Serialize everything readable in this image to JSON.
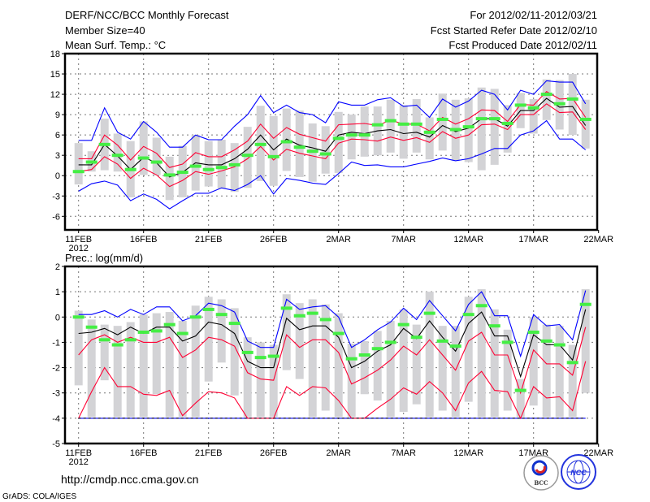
{
  "header": {
    "title": "DERF/NCC/BCC Monthly Forecast",
    "member_size": "Member Size=40",
    "variable": "Mean Surf. Temp.: °C",
    "period": "For 2012/02/11-2012/03/21",
    "start_date": "Fcst Started Refer Date 2012/02/10",
    "produced_date": "Fcst Produced Date 2012/02/11"
  },
  "footer": {
    "url": "http://cmdp.ncc.cma.gov.cn",
    "credit": "GrADS: COLA/IGES",
    "logos": [
      "BCC",
      "NCC"
    ]
  },
  "colors": {
    "max_min": "#0000ff",
    "quartile": "#ff0033",
    "mean": "#000000",
    "observed": "#44ee44",
    "range_box": "#d3d3d6"
  },
  "chart_data": [
    {
      "type": "line",
      "title": "Mean Surf. Temp.: °C",
      "xlabel": "",
      "ylabel": "Mean Surf. Temp.: °C",
      "ylim": [
        -8,
        18
      ],
      "yticks": [
        18,
        15,
        12,
        9,
        6,
        3,
        0,
        -3,
        -6
      ],
      "xticks": [
        {
          "day": 0,
          "label": "11FEB"
        },
        {
          "day": 5,
          "label": "16FEB"
        },
        {
          "day": 10,
          "label": "21FEB"
        },
        {
          "day": 15,
          "label": "26FEB"
        },
        {
          "day": 20,
          "label": "2MAR"
        },
        {
          "day": 25,
          "label": "7MAR"
        },
        {
          "day": 30,
          "label": "12MAR"
        },
        {
          "day": 35,
          "label": "17MAR"
        },
        {
          "day": 40,
          "label": "22MAR"
        }
      ],
      "year_label": "2012",
      "grid": true,
      "series": {
        "max": [
          5.2,
          5.2,
          10,
          6.4,
          5.4,
          8,
          6.4,
          4.2,
          4.2,
          6,
          5.3,
          5.3,
          7.3,
          9,
          11.8,
          9.3,
          10.4,
          9.3,
          9,
          7.8,
          10.9,
          10.4,
          10.4,
          11.2,
          11.5,
          10.2,
          10.4,
          8.6,
          11.3,
          10.1,
          11,
          12.6,
          12,
          9.7,
          12.6,
          12,
          14,
          13.8,
          13.8,
          10.6
        ],
        "upper": [
          2.5,
          2.5,
          6,
          4.5,
          2.3,
          4.3,
          3.3,
          1.2,
          1.7,
          3.4,
          2.8,
          2.8,
          3.8,
          5.1,
          7.6,
          5.5,
          7.1,
          6.1,
          5.6,
          5.1,
          7.5,
          7.6,
          7.7,
          7.4,
          8.2,
          7.6,
          7.6,
          6.6,
          8.6,
          7.6,
          8.4,
          9.7,
          9.6,
          8,
          10.5,
          10.4,
          12.4,
          11.3,
          11.4,
          8.6
        ],
        "mean": [
          1.6,
          1.6,
          4.6,
          2.9,
          0.9,
          2.7,
          1.9,
          -0.2,
          0.5,
          1.9,
          1.6,
          1.6,
          2.5,
          3.9,
          6,
          3.8,
          5.4,
          4.5,
          4.1,
          3.6,
          6,
          6.4,
          6.2,
          6.6,
          6.8,
          6.2,
          6.4,
          5.7,
          7.4,
          6.5,
          7,
          8.4,
          8.4,
          7.3,
          9.6,
          9.6,
          11.4,
          10.1,
          10.2,
          7.4
        ],
        "lower": [
          0.6,
          0.9,
          2.8,
          1.7,
          -0.4,
          1.1,
          0.1,
          -1.6,
          -0.7,
          0.6,
          0.2,
          0.7,
          1.3,
          2.5,
          4.3,
          2.3,
          3.9,
          3.3,
          2.9,
          2.5,
          4.8,
          5.4,
          5.3,
          5.1,
          5.7,
          5.2,
          5.6,
          4.9,
          6.5,
          5.5,
          6,
          7.5,
          7.6,
          6.8,
          9,
          9,
          10.6,
          9.3,
          9.4,
          6.8
        ],
        "min": [
          -2.3,
          -1.2,
          -0.8,
          -1.4,
          -3.7,
          -2.7,
          -3.5,
          -4.9,
          -3.7,
          -2.6,
          -2.6,
          -1.8,
          -2.2,
          -1.3,
          0,
          -2.7,
          -0.4,
          -0.7,
          -1.1,
          -1.3,
          0.3,
          2,
          1.5,
          1.6,
          1.3,
          1.3,
          1.7,
          2.1,
          2.6,
          2.2,
          2.5,
          3.2,
          4,
          4,
          6,
          6.6,
          8.1,
          5.4,
          5.4,
          3.8
        ],
        "box_high": [
          4.8,
          3.6,
          8.4,
          6.2,
          5.1,
          8,
          5.6,
          2.8,
          4.4,
          6,
          5.1,
          5.3,
          4.8,
          7.2,
          10.3,
          8.8,
          9.9,
          9.6,
          7.7,
          7.3,
          9.4,
          9,
          10.2,
          10.2,
          11.2,
          10.4,
          11.3,
          8.6,
          12.1,
          11.2,
          11.4,
          13,
          12.8,
          10.4,
          12.2,
          11.3,
          14.2,
          14.1,
          15,
          11.2
        ],
        "box_low": [
          -1.3,
          0.6,
          0.8,
          0.6,
          -3.2,
          0.1,
          0.1,
          -3.6,
          -3.2,
          -2.2,
          -1.6,
          -1.9,
          -2.4,
          -1.8,
          -0.8,
          -1.5,
          0.7,
          -0.2,
          -0.9,
          0.3,
          0.4,
          2.4,
          2.8,
          3,
          3.4,
          2.5,
          3.4,
          2.4,
          3.7,
          2.2,
          2,
          0.8,
          1.6,
          3.4,
          7,
          6.2,
          8.2,
          6.8,
          6,
          4
        ],
        "observed": [
          0.6,
          2,
          4.6,
          3,
          0.9,
          2.6,
          2,
          0.1,
          0.5,
          1.4,
          0.9,
          1.2,
          1.6,
          3,
          4.6,
          2.8,
          5,
          4.2,
          3.6,
          3.2,
          5.5,
          6,
          6,
          7.5,
          8.1,
          7.6,
          7.6,
          6.4,
          8.3,
          6.8,
          7.2,
          8.4,
          8.4,
          7.7,
          10.4,
          10,
          12,
          10.6,
          11.3,
          8.3
        ]
      }
    },
    {
      "type": "line",
      "title": "Prec.: log(mm/d)",
      "xlabel": "",
      "ylabel": "Prec.: log(mm/d)",
      "ylim": [
        -5,
        2
      ],
      "yticks": [
        2,
        1,
        0,
        -1,
        -2,
        -3,
        -4,
        -5
      ],
      "xticks": [
        {
          "day": 0,
          "label": "11FEB"
        },
        {
          "day": 5,
          "label": "16FEB"
        },
        {
          "day": 10,
          "label": "21FEB"
        },
        {
          "day": 15,
          "label": "26FEB"
        },
        {
          "day": 20,
          "label": "2MAR"
        },
        {
          "day": 25,
          "label": "7MAR"
        },
        {
          "day": 30,
          "label": "12MAR"
        },
        {
          "day": 35,
          "label": "17MAR"
        },
        {
          "day": 40,
          "label": "22MAR"
        }
      ],
      "year_label": "2012",
      "grid": true,
      "series": {
        "max": [
          0.1,
          0.1,
          0.25,
          0,
          0.3,
          0.1,
          0.4,
          0.4,
          -0.15,
          0.05,
          0.55,
          0.45,
          0.2,
          -0.95,
          -1.2,
          -1.2,
          0.7,
          0.3,
          0.4,
          0.45,
          0,
          -1.2,
          -0.9,
          -0.5,
          -0.2,
          0.35,
          -0.1,
          0.65,
          0.05,
          -0.55,
          0.5,
          1,
          0.05,
          0.05,
          -1.55,
          0.1,
          -0.35,
          -0.3,
          -0.9,
          1.05
        ],
        "upper": [
          -1.5,
          -0.9,
          -0.7,
          -1,
          -0.8,
          -1,
          -1,
          -0.8,
          -1.6,
          -1.3,
          -0.8,
          -0.9,
          -1.15,
          -2.2,
          -2.45,
          -2.5,
          -0.7,
          -1.2,
          -0.9,
          -0.9,
          -1.4,
          -2.65,
          -2.4,
          -2.1,
          -1.7,
          -1.15,
          -1.5,
          -0.9,
          -1.5,
          -2.1,
          -0.95,
          -0.6,
          -1.5,
          -1.5,
          -3,
          -1.3,
          -1.85,
          -1.85,
          -2.3,
          -0.4
        ],
        "mean": [
          -0.65,
          -0.6,
          -0.45,
          -0.7,
          -0.4,
          -0.65,
          -0.4,
          -0.4,
          -0.95,
          -0.75,
          -0.2,
          -0.3,
          -0.65,
          -1.75,
          -2,
          -2,
          -0.05,
          -0.5,
          -0.35,
          -0.35,
          -0.8,
          -2,
          -1.75,
          -1.35,
          -1.1,
          -0.45,
          -0.85,
          -0.15,
          -0.8,
          -1.35,
          -0.25,
          0.2,
          -0.75,
          -0.75,
          -2.35,
          -0.7,
          -1.1,
          -1.1,
          -1.7,
          0.3
        ],
        "lower": [
          -4,
          -2.95,
          -2,
          -2.75,
          -2.75,
          -3.05,
          -3.1,
          -2.9,
          -3.9,
          -3.4,
          -2.95,
          -3,
          -3.2,
          -4,
          -4,
          -4,
          -2.75,
          -3.1,
          -2.75,
          -2.8,
          -3.3,
          -4,
          -4,
          -3.6,
          -3.25,
          -2.8,
          -3.05,
          -2.55,
          -3,
          -3.7,
          -2.6,
          -2.15,
          -2.9,
          -2.95,
          -4,
          -2.75,
          -3.2,
          -3.15,
          -3.7,
          -1.75
        ],
        "min": [
          -4,
          -4,
          -4,
          -4,
          -4,
          -4,
          -4,
          -4,
          -4,
          -4,
          -4,
          -4,
          -4,
          -4,
          -4,
          -4,
          -4,
          -4,
          -4,
          -4,
          -4,
          -4,
          -4,
          -4,
          -4,
          -4,
          -4,
          -4,
          -4,
          -4,
          -4,
          -4,
          -4,
          -4,
          -4,
          -4,
          -4,
          -4,
          -4,
          -4
        ],
        "box_high": [
          0.25,
          -0.1,
          -0.3,
          -0.35,
          -0.2,
          0.1,
          0.15,
          0.2,
          -0.15,
          0.45,
          0.8,
          0.7,
          0.35,
          -0.8,
          -1,
          -1.1,
          0.9,
          0.55,
          0.7,
          0.5,
          0.15,
          -1.05,
          -0.95,
          -0.55,
          -0.15,
          0.3,
          -0.3,
          1,
          -0.35,
          -0.35,
          0.8,
          1.1,
          0.3,
          -0.5,
          -2.45,
          0,
          -0.3,
          -0.35,
          -1.1,
          1.1
        ],
        "box_low": [
          -2.7,
          -3.95,
          -2.5,
          -3.95,
          -3.95,
          -3.95,
          -3.05,
          -3.95,
          -3.95,
          -3.95,
          -2.55,
          -1.8,
          -3.1,
          -3.95,
          -3.95,
          -3.95,
          -2.1,
          -2.45,
          -3.95,
          -3.7,
          -3.95,
          -3.95,
          -3.05,
          -3.3,
          -3.95,
          -3.75,
          -3.45,
          -3.95,
          -3.7,
          -3.95,
          -3.35,
          -3.95,
          -3.95,
          -3.7,
          -3.95,
          -3.5,
          -3.95,
          -3.95,
          -3.95,
          -3
        ],
        "observed": [
          0,
          -0.4,
          -0.9,
          -1.1,
          -0.9,
          -0.6,
          -0.55,
          -0.3,
          -0.65,
          0,
          0.3,
          0.1,
          -0.25,
          -1.4,
          -1.6,
          -1.55,
          0.35,
          0.05,
          0.15,
          -0.1,
          -0.65,
          -1.65,
          -1.5,
          -1.25,
          -1,
          -0.3,
          -0.8,
          0.15,
          -0.95,
          -1.15,
          0.1,
          0.45,
          -0.35,
          -1,
          -2.9,
          -0.6,
          -0.95,
          -1.1,
          -1.8,
          0.5
        ]
      }
    }
  ]
}
